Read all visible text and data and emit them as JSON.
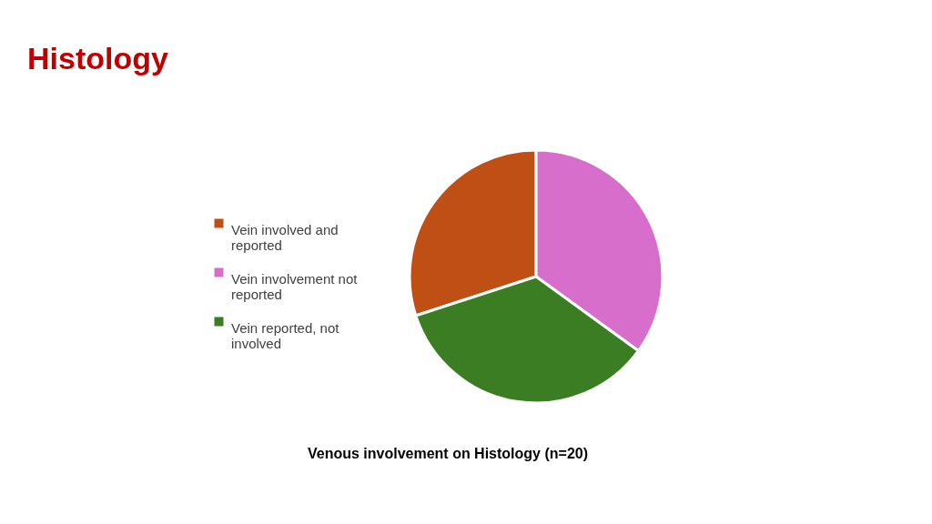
{
  "chart_data": {
    "type": "pie",
    "title": "Histology",
    "categories": [
      "Vein involved and reported",
      "Vein involvement not reported",
      "Vein reported, not involved"
    ],
    "values": [
      30,
      35,
      35
    ],
    "colors": [
      "#c04f15",
      "#d86ecc",
      "#3b7d23"
    ],
    "legend": "left",
    "annotations": [
      "Venous involvement on Histology (n=20)"
    ]
  }
}
